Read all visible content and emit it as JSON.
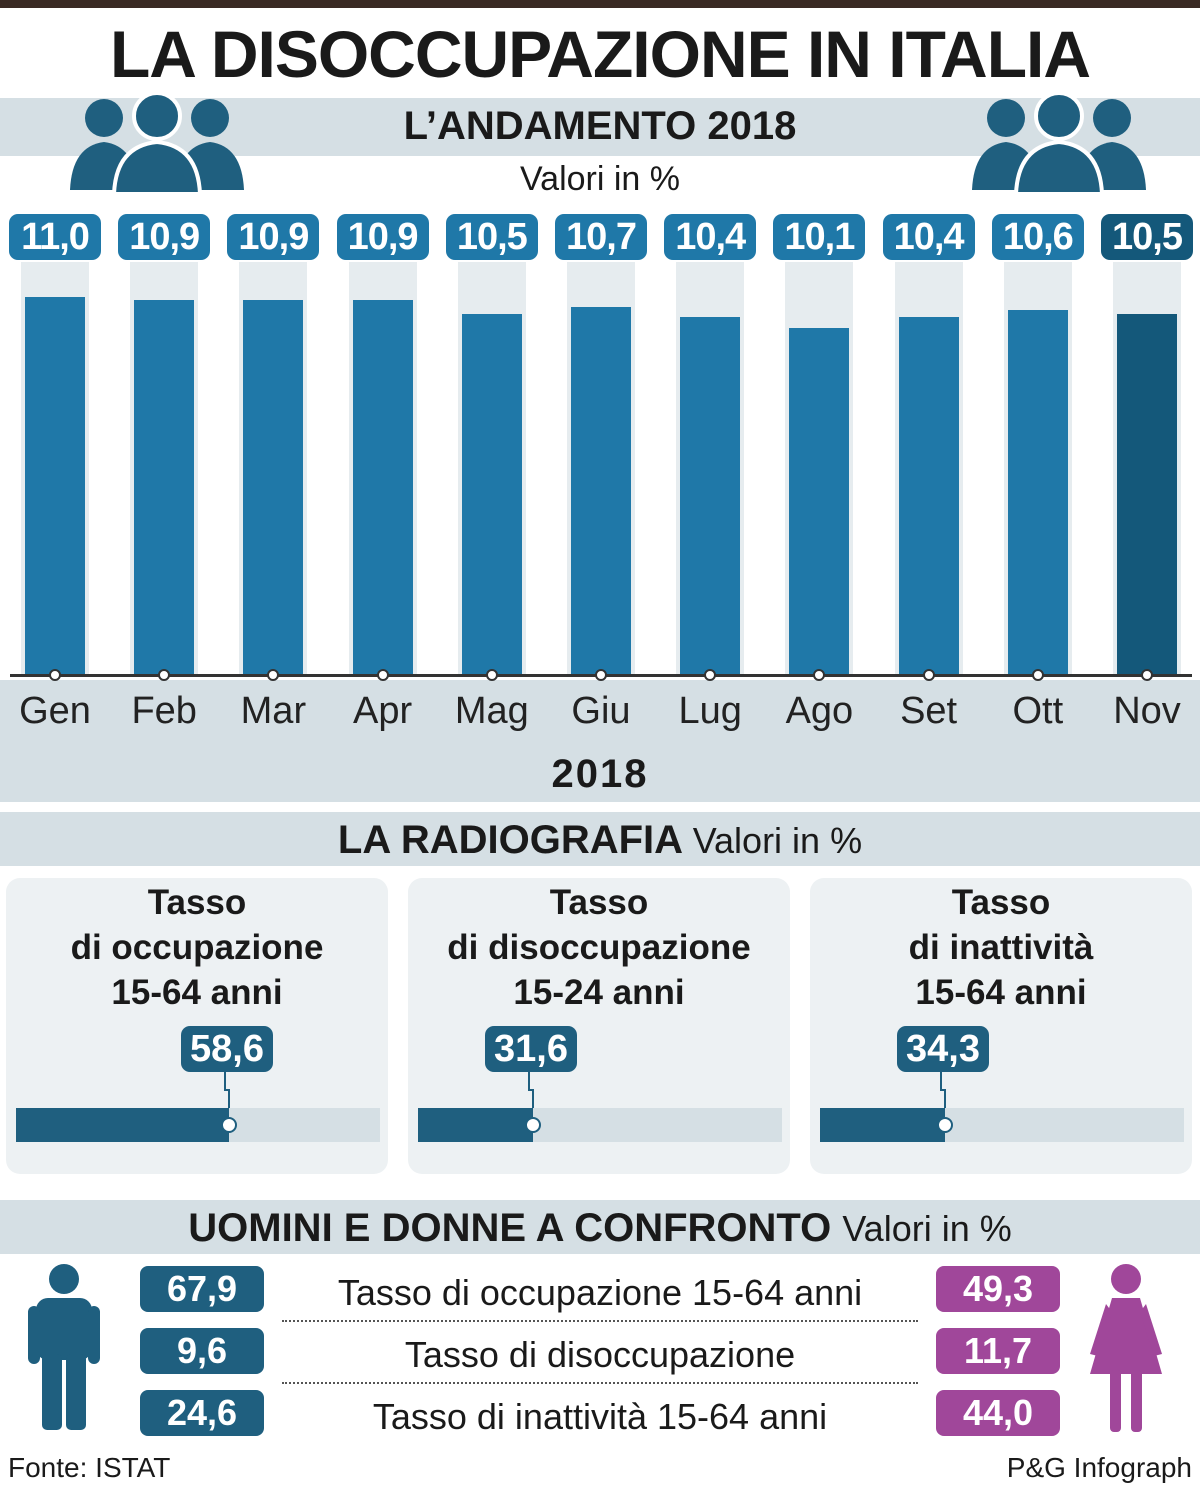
{
  "title": "LA DISOCCUPAZIONE IN ITALIA",
  "trend": {
    "title": "L’ANDAMENTO 2018",
    "unit": "Valori in %",
    "year_label": "2018"
  },
  "chart_data": {
    "type": "bar",
    "title": "L’ANDAMENTO 2018",
    "subtitle": "Valori in %",
    "xlabel": "2018",
    "ylabel": "",
    "categories": [
      "Gen",
      "Feb",
      "Mar",
      "Apr",
      "Mag",
      "Giu",
      "Lug",
      "Ago",
      "Set",
      "Ott",
      "Nov"
    ],
    "values": [
      11.0,
      10.9,
      10.9,
      10.9,
      10.5,
      10.7,
      10.4,
      10.1,
      10.4,
      10.6,
      10.5
    ],
    "value_labels": [
      "11,0",
      "10,9",
      "10,9",
      "10,9",
      "10,5",
      "10,7",
      "10,4",
      "10,1",
      "10,4",
      "10,6",
      "10,5"
    ],
    "ylim": [
      0,
      12
    ],
    "grid": false,
    "colors": {
      "bar": "#1f78a8",
      "bar_highlight": "#14587a",
      "background": "#e6ecef"
    }
  },
  "radiografia": {
    "title": "LA RADIOGRAFIA",
    "unit": "Valori in %",
    "cards": [
      {
        "line1": "Tasso",
        "line2": "di occupazione",
        "line3": "15-64 anni",
        "value": 58.6,
        "value_label": "58,6"
      },
      {
        "line1": "Tasso",
        "line2": "di disoccupazione",
        "line3": "15-24 anni",
        "value": 31.6,
        "value_label": "31,6"
      },
      {
        "line1": "Tasso",
        "line2": "di inattività",
        "line3": "15-64 anni",
        "value": 34.3,
        "value_label": "34,3"
      }
    ]
  },
  "confronto": {
    "title": "UOMINI E DONNE A CONFRONTO",
    "unit": "Valori in %",
    "rows": [
      {
        "label": "Tasso di occupazione 15-64 anni",
        "uomini": "67,9",
        "donne": "49,3"
      },
      {
        "label": "Tasso di disoccupazione",
        "uomini": "9,6",
        "donne": "11,7"
      },
      {
        "label": "Tasso di inattività 15-64 anni",
        "uomini": "24,6",
        "donne": "44,0"
      }
    ],
    "colors": {
      "uomini": "#1f5f7f",
      "donne": "#a0479a"
    }
  },
  "footer": {
    "source": "Fonte: ISTAT",
    "credit": "P&G Infograph"
  }
}
